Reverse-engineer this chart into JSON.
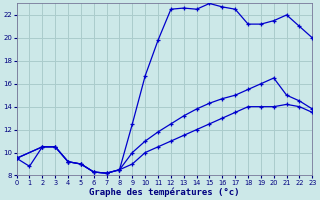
{
  "title": "Graphe des températures (°c)",
  "bg_color": "#cce8e8",
  "line_color": "#0000cc",
  "grid_color": "#aacccc",
  "xlim": [
    0,
    23
  ],
  "ylim": [
    8,
    23
  ],
  "xticks": [
    0,
    1,
    2,
    3,
    4,
    5,
    6,
    7,
    8,
    9,
    10,
    11,
    12,
    13,
    14,
    15,
    16,
    17,
    18,
    19,
    20,
    21,
    22,
    23
  ],
  "yticks": [
    8,
    10,
    12,
    14,
    16,
    18,
    20,
    22
  ],
  "line1_x": [
    0,
    1,
    2,
    3,
    4,
    5,
    6,
    7,
    8,
    9,
    10,
    11,
    12,
    13,
    14,
    15,
    16,
    17,
    18,
    19,
    20,
    21,
    22,
    23
  ],
  "line1_y": [
    9.5,
    8.8,
    10.5,
    10.5,
    9.2,
    9.0,
    8.3,
    8.2,
    8.5,
    12.5,
    16.7,
    19.8,
    22.5,
    22.6,
    22.5,
    23.0,
    22.7,
    22.5,
    21.2,
    21.2,
    21.5,
    22.0,
    21.0,
    20.0
  ],
  "line2_x": [
    0,
    2,
    3,
    4,
    5,
    6,
    7,
    8,
    9,
    10,
    11,
    12,
    13,
    14,
    15,
    16,
    17,
    18,
    19,
    20,
    21,
    22,
    23
  ],
  "line2_y": [
    9.5,
    10.5,
    10.5,
    9.2,
    9.0,
    8.3,
    8.2,
    8.5,
    10.0,
    11.0,
    11.8,
    12.5,
    13.2,
    13.8,
    14.3,
    14.7,
    15.0,
    15.5,
    16.0,
    16.5,
    15.0,
    14.5,
    13.8
  ],
  "line3_x": [
    0,
    2,
    3,
    4,
    5,
    6,
    7,
    8,
    9,
    10,
    11,
    12,
    13,
    14,
    15,
    16,
    17,
    18,
    19,
    20,
    21,
    22,
    23
  ],
  "line3_y": [
    9.5,
    10.5,
    10.5,
    9.2,
    9.0,
    8.3,
    8.2,
    8.5,
    9.0,
    10.0,
    10.5,
    11.0,
    11.5,
    12.0,
    12.5,
    13.0,
    13.5,
    14.0,
    14.0,
    14.0,
    14.2,
    14.0,
    13.5
  ]
}
